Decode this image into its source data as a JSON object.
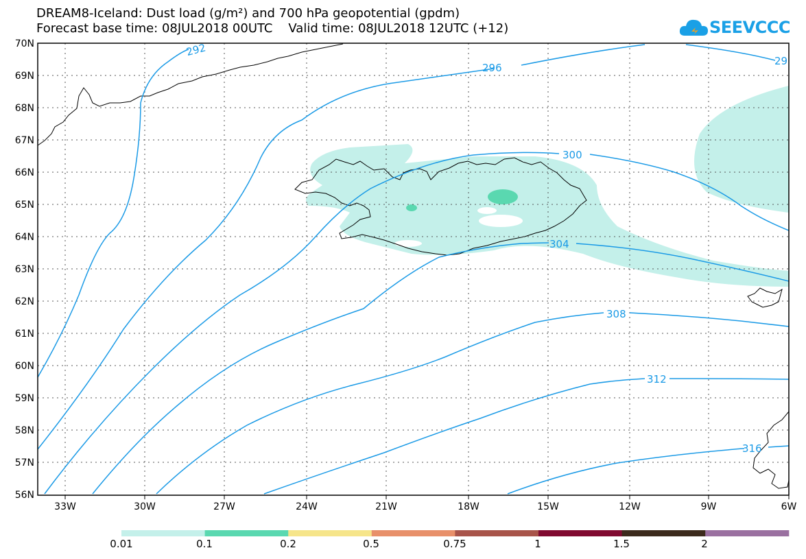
{
  "title": {
    "line1": "DREAM8-Iceland: Dust load (g/m²) and 700 hPa geopotential (gpdm)",
    "line2": "Forecast base time: 08JUL2018 00UTC    Valid time: 08JUL2018 12UTC (+12)"
  },
  "logo": {
    "text": "SEEVCCC"
  },
  "map": {
    "lon_labels": [
      "33W",
      "30W",
      "27W",
      "24W",
      "21W",
      "18W",
      "15W",
      "12W",
      "9W",
      "6W"
    ],
    "lat_labels": [
      "70N",
      "69N",
      "68N",
      "67N",
      "66N",
      "65N",
      "64N",
      "63N",
      "62N",
      "61N",
      "60N",
      "59N",
      "58N",
      "57N",
      "56N"
    ],
    "contour_labels": [
      "292",
      "296",
      "300",
      "304",
      "308",
      "312",
      "316",
      "29"
    ]
  },
  "colorbar": {
    "labels": [
      "0.01",
      "0.1",
      "0.2",
      "0.5",
      "0.75",
      "1",
      "1.5",
      "2"
    ],
    "colors": [
      "#c4f0ea",
      "#5ad8b0",
      "#f6e58a",
      "#e8906a",
      "#a8544a",
      "#800a30",
      "#3c2a1c",
      "#9a70a0"
    ]
  },
  "colors": {
    "contour": "#1a9ae6",
    "dust_light": "#c4f0ea",
    "dust_mid": "#5ad8b0"
  }
}
